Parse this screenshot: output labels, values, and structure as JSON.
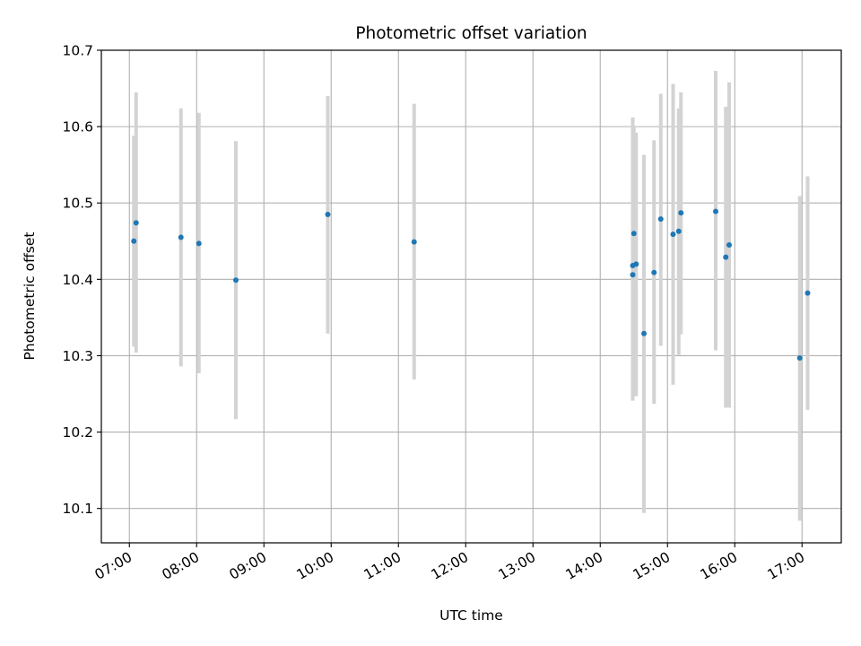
{
  "chart_data": {
    "type": "scatter",
    "title": "Photometric offset variation",
    "xlabel": "UTC time",
    "ylabel": "Photometric offset",
    "xlim": [
      "06:35",
      "17:35"
    ],
    "ylim": [
      10.055,
      10.7
    ],
    "grid": true,
    "x_ticks": [
      "07:00",
      "08:00",
      "09:00",
      "10:00",
      "11:00",
      "12:00",
      "13:00",
      "14:00",
      "15:00",
      "16:00",
      "17:00"
    ],
    "y_ticks": [
      10.1,
      10.2,
      10.3,
      10.4,
      10.5,
      10.6,
      10.7
    ],
    "y_tick_labels": [
      "10.1",
      "10.2",
      "10.3",
      "10.4",
      "10.5",
      "10.6",
      "10.7"
    ],
    "marker_color": "#1f77b4",
    "errorbar_color": "#d3d3d3",
    "points": [
      {
        "x": "07:04",
        "y": 10.45,
        "y_low": 10.312,
        "y_high": 10.588
      },
      {
        "x": "07:06",
        "y": 10.474,
        "y_low": 10.304,
        "y_high": 10.645
      },
      {
        "x": "07:46",
        "y": 10.455,
        "y_low": 10.286,
        "y_high": 10.624
      },
      {
        "x": "08:02",
        "y": 10.447,
        "y_low": 10.277,
        "y_high": 10.618
      },
      {
        "x": "08:35",
        "y": 10.399,
        "y_low": 10.217,
        "y_high": 10.581
      },
      {
        "x": "09:57",
        "y": 10.485,
        "y_low": 10.329,
        "y_high": 10.64
      },
      {
        "x": "11:14",
        "y": 10.449,
        "y_low": 10.269,
        "y_high": 10.63
      },
      {
        "x": "14:29",
        "y": 10.406,
        "y_low": 10.241,
        "y_high": 10.573
      },
      {
        "x": "14:29",
        "y": 10.418,
        "y_low": 10.254,
        "y_high": 10.612
      },
      {
        "x": "14:30",
        "y": 10.46,
        "y_low": 10.292,
        "y_high": 10.601
      },
      {
        "x": "14:32",
        "y": 10.42,
        "y_low": 10.247,
        "y_high": 10.592
      },
      {
        "x": "14:39",
        "y": 10.329,
        "y_low": 10.094,
        "y_high": 10.563
      },
      {
        "x": "14:48",
        "y": 10.409,
        "y_low": 10.237,
        "y_high": 10.582
      },
      {
        "x": "14:54",
        "y": 10.479,
        "y_low": 10.313,
        "y_high": 10.643
      },
      {
        "x": "15:05",
        "y": 10.459,
        "y_low": 10.262,
        "y_high": 10.656
      },
      {
        "x": "15:10",
        "y": 10.463,
        "y_low": 10.301,
        "y_high": 10.624
      },
      {
        "x": "15:12",
        "y": 10.487,
        "y_low": 10.328,
        "y_high": 10.645
      },
      {
        "x": "15:43",
        "y": 10.489,
        "y_low": 10.307,
        "y_high": 10.673
      },
      {
        "x": "15:52",
        "y": 10.429,
        "y_low": 10.232,
        "y_high": 10.626
      },
      {
        "x": "15:55",
        "y": 10.445,
        "y_low": 10.232,
        "y_high": 10.658
      },
      {
        "x": "16:58",
        "y": 10.297,
        "y_low": 10.084,
        "y_high": 10.509
      },
      {
        "x": "17:05",
        "y": 10.382,
        "y_low": 10.229,
        "y_high": 10.535
      }
    ]
  }
}
